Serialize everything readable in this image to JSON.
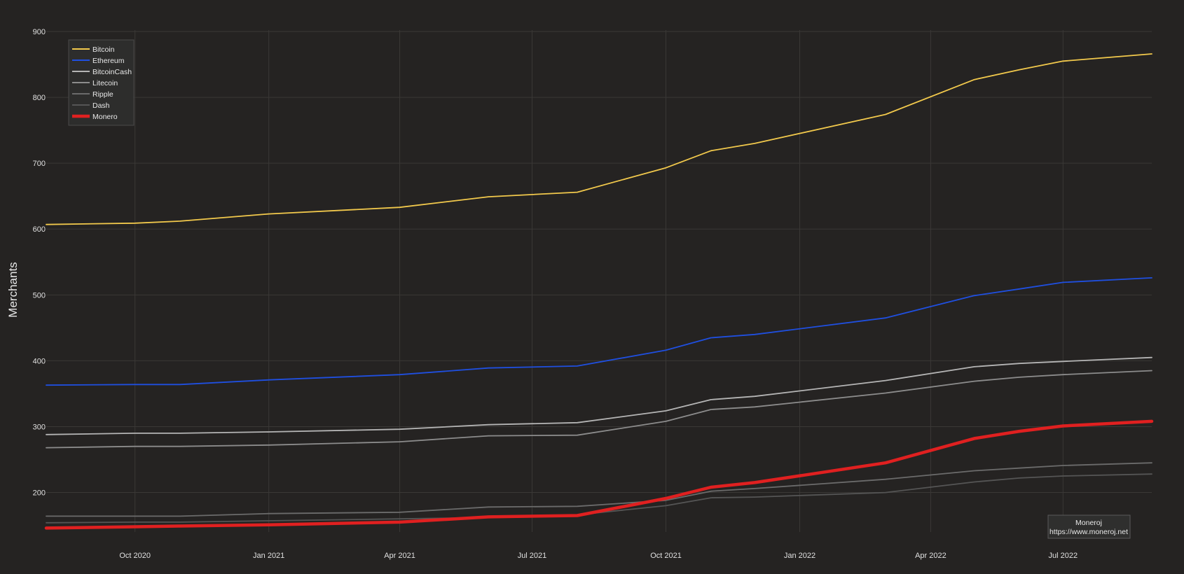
{
  "chart_data": {
    "type": "line",
    "title": "",
    "xlabel": "",
    "ylabel": "Merchants",
    "ylim": [
      140,
      900
    ],
    "xlim": [
      "2020-08-01",
      "2022-08-31"
    ],
    "y_ticks": [
      200,
      300,
      400,
      500,
      600,
      700,
      800,
      900
    ],
    "x_ticks": [
      {
        "date": "2020-10-01",
        "label": "Oct 2020"
      },
      {
        "date": "2021-01-01",
        "label": "Jan 2021"
      },
      {
        "date": "2021-04-01",
        "label": "Apr 2021"
      },
      {
        "date": "2021-07-01",
        "label": "Jul 2021"
      },
      {
        "date": "2021-10-01",
        "label": "Oct 2021"
      },
      {
        "date": "2022-01-01",
        "label": "Jan 2022"
      },
      {
        "date": "2022-04-01",
        "label": "Apr 2022"
      },
      {
        "date": "2022-07-01",
        "label": "Jul 2022"
      }
    ],
    "grid": true,
    "legend_position": "top-left",
    "x": [
      "2020-08-01",
      "2020-10-01",
      "2020-11-01",
      "2021-01-01",
      "2021-04-01",
      "2021-06-01",
      "2021-08-01",
      "2021-10-01",
      "2021-11-01",
      "2021-12-01",
      "2022-03-01",
      "2022-05-01",
      "2022-06-01",
      "2022-07-01",
      "2022-08-31"
    ],
    "series": [
      {
        "name": "Bitcoin",
        "color": "#f2c94c",
        "values": [
          607,
          609,
          612,
          623,
          633,
          649,
          656,
          693,
          719,
          730,
          774,
          827,
          842,
          855,
          866
        ]
      },
      {
        "name": "Ethereum",
        "color": "#1f4fe0",
        "values": [
          363,
          364,
          364,
          371,
          379,
          389,
          392,
          416,
          435,
          440,
          465,
          499,
          509,
          519,
          526
        ]
      },
      {
        "name": "BitcoinCash",
        "color": "#b5b5b5",
        "values": [
          288,
          290,
          290,
          292,
          296,
          303,
          306,
          324,
          341,
          346,
          370,
          391,
          396,
          399,
          405
        ]
      },
      {
        "name": "Litecoin",
        "color": "#8c8c8c",
        "values": [
          268,
          270,
          270,
          272,
          277,
          286,
          287,
          308,
          326,
          330,
          351,
          369,
          375,
          379,
          385
        ]
      },
      {
        "name": "Ripple",
        "color": "#6b6b6b",
        "values": [
          164,
          164,
          164,
          168,
          170,
          178,
          179,
          188,
          202,
          206,
          220,
          233,
          237,
          241,
          245
        ]
      },
      {
        "name": "Dash",
        "color": "#555555",
        "values": [
          154,
          155,
          155,
          157,
          160,
          162,
          166,
          180,
          192,
          193,
          200,
          216,
          222,
          225,
          228
        ]
      },
      {
        "name": "Monero",
        "color": "#e02020",
        "values": [
          146,
          148,
          149,
          151,
          155,
          163,
          165,
          191,
          208,
          215,
          245,
          282,
          293,
          301,
          308
        ]
      }
    ],
    "annotation": {
      "line1": "Moneroj",
      "line2": "https://www.moneroj.net"
    }
  }
}
